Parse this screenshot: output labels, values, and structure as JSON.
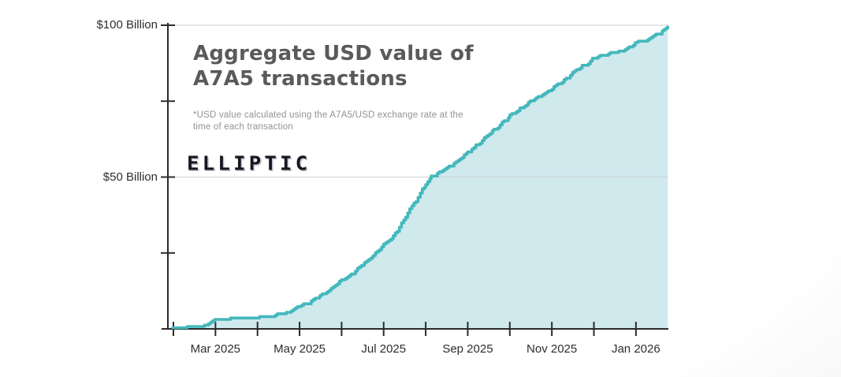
{
  "header": {
    "title_line1": "Aggregate USD value of",
    "title_line2": "A7A5 transactions",
    "footnote": "*USD value calculated using the A7A5/USD exchange rate at the time of each transaction",
    "brand": "ELLIPTIC"
  },
  "chart_data": {
    "type": "area",
    "title": "Aggregate USD value of A7A5 transactions",
    "footnote": "*USD value calculated using the A7A5/USD exchange rate at the time of each transaction",
    "unit": "USD billions",
    "xlabel": "",
    "ylabel": "",
    "ylim": [
      0,
      100
    ],
    "legend": "none",
    "grid": "horizontal lines at $50B and $100B",
    "y_ticks": [
      {
        "value": 25,
        "label": ""
      },
      {
        "value": 50,
        "label": "$50 Billion"
      },
      {
        "value": 75,
        "label": ""
      },
      {
        "value": 100,
        "label": "$100 Billion"
      }
    ],
    "x_ticks_monthly": [
      "2025-02",
      "2025-03",
      "2025-04",
      "2025-05",
      "2025-06",
      "2025-07",
      "2025-08",
      "2025-09",
      "2025-10",
      "2025-11",
      "2025-12",
      "2026-01"
    ],
    "x_tick_labels": [
      {
        "month": "2025-03",
        "label": "Mar 2025"
      },
      {
        "month": "2025-05",
        "label": "May 2025"
      },
      {
        "month": "2025-07",
        "label": "Jul 2025"
      },
      {
        "month": "2025-09",
        "label": "Sep 2025"
      },
      {
        "month": "2025-11",
        "label": "Nov 2025"
      },
      {
        "month": "2026-01",
        "label": "Jan 2026"
      }
    ],
    "series": [
      {
        "name": "Aggregate USD value of A7A5 transactions",
        "points": [
          [
            "2025-01-31",
            0.1
          ],
          [
            "2025-02-08",
            0.2
          ],
          [
            "2025-02-16",
            0.3
          ],
          [
            "2025-02-22",
            0.6
          ],
          [
            "2025-03-01",
            2.8
          ],
          [
            "2025-03-06",
            3.2
          ],
          [
            "2025-03-14",
            3.4
          ],
          [
            "2025-03-24",
            3.5
          ],
          [
            "2025-04-01",
            3.6
          ],
          [
            "2025-04-08",
            3.9
          ],
          [
            "2025-04-16",
            4.5
          ],
          [
            "2025-04-24",
            5.6
          ],
          [
            "2025-05-01",
            7.5
          ],
          [
            "2025-05-08",
            8.7
          ],
          [
            "2025-05-16",
            10.8
          ],
          [
            "2025-05-24",
            13.2
          ],
          [
            "2025-06-01",
            16.0
          ],
          [
            "2025-06-08",
            18.0
          ],
          [
            "2025-06-16",
            21.0
          ],
          [
            "2025-06-24",
            24.2
          ],
          [
            "2025-07-01",
            27.5
          ],
          [
            "2025-07-08",
            30.5
          ],
          [
            "2025-07-14",
            34.5
          ],
          [
            "2025-07-20",
            39.5
          ],
          [
            "2025-07-26",
            43.5
          ],
          [
            "2025-08-01",
            47.5
          ],
          [
            "2025-08-05",
            50.0
          ],
          [
            "2025-08-12",
            51.8
          ],
          [
            "2025-08-20",
            54.0
          ],
          [
            "2025-09-01",
            58.0
          ],
          [
            "2025-09-10",
            61.5
          ],
          [
            "2025-09-20",
            65.5
          ],
          [
            "2025-10-01",
            70.0
          ],
          [
            "2025-10-10",
            73.0
          ],
          [
            "2025-10-20",
            76.0
          ],
          [
            "2025-11-01",
            79.0
          ],
          [
            "2025-11-10",
            82.0
          ],
          [
            "2025-11-20",
            85.5
          ],
          [
            "2025-12-01",
            89.0
          ],
          [
            "2025-12-10",
            90.5
          ],
          [
            "2025-12-22",
            91.5
          ],
          [
            "2026-01-01",
            94.3
          ],
          [
            "2026-01-08",
            94.6
          ],
          [
            "2026-01-11",
            96.2
          ],
          [
            "2026-01-17",
            97.0
          ],
          [
            "2026-01-21",
            98.0
          ],
          [
            "2026-01-24",
            99.6
          ]
        ]
      }
    ],
    "colors": {
      "line": "#44b8bc",
      "fill": "#cfe9ed",
      "grid": "#c9ced1",
      "axis": "#2b2b2b",
      "title": "#5a5a5a",
      "footnote": "#929292",
      "tick_label": "#2d2d2d",
      "brand": "#171721"
    }
  }
}
